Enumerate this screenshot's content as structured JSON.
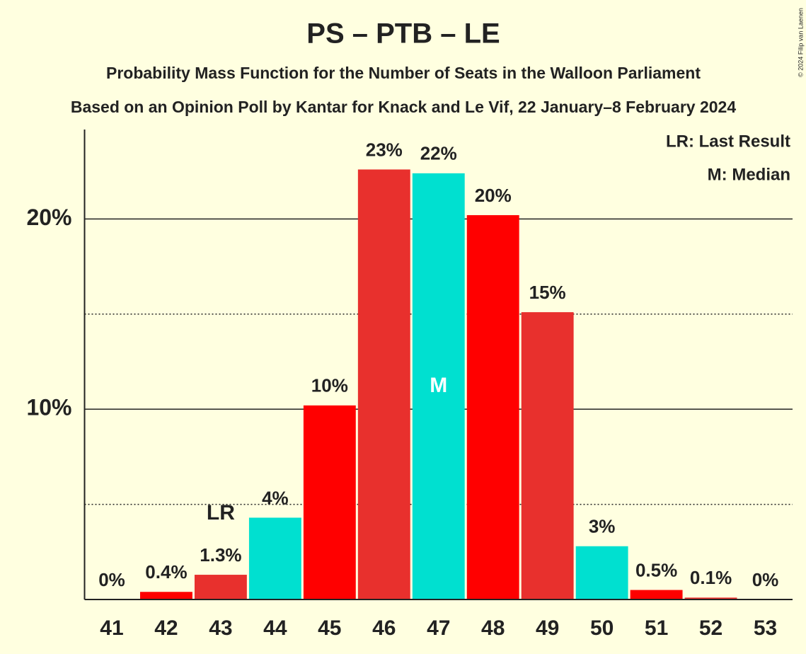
{
  "chart_data": {
    "type": "bar",
    "title": "PS – PTB – LE",
    "subtitle": "Probability Mass Function for the Number of Seats in the Walloon Parliament",
    "subtitle2": "Based on an Opinion Poll by Kantar for Knack and Le Vif, 22 January–8 February 2024",
    "copyright": "© 2024 Filip van Laenen",
    "categories": [
      "41",
      "42",
      "43",
      "44",
      "45",
      "46",
      "47",
      "48",
      "49",
      "50",
      "51",
      "52",
      "53"
    ],
    "values": [
      0,
      0.4,
      1.3,
      4.3,
      10.2,
      22.6,
      22.4,
      20.2,
      15.1,
      2.8,
      0.5,
      0.1,
      0
    ],
    "value_labels": [
      "0%",
      "0.4%",
      "1.3%",
      "4%",
      "10%",
      "23%",
      "22%",
      "20%",
      "15%",
      "3%",
      "0.5%",
      "0.1%",
      "0%"
    ],
    "colors": [
      "#00e0d0",
      "#ff0000",
      "#e8302d",
      "#00e0d0",
      "#ff0000",
      "#e8302d",
      "#00e0d0",
      "#ff0000",
      "#e8302d",
      "#00e0d0",
      "#ff0000",
      "#e8302d",
      "#00e0d0"
    ],
    "ylim": [
      0,
      24.7
    ],
    "yticks": [
      {
        "value": 10,
        "label": "10%"
      },
      {
        "value": 20,
        "label": "20%"
      }
    ],
    "minor_yticks": [
      5,
      15
    ],
    "grid": true,
    "last_result": {
      "category": "43",
      "label": "LR"
    },
    "median": {
      "category": "47",
      "label": "M"
    },
    "legend": [
      "LR: Last Result",
      "M: Median"
    ]
  }
}
